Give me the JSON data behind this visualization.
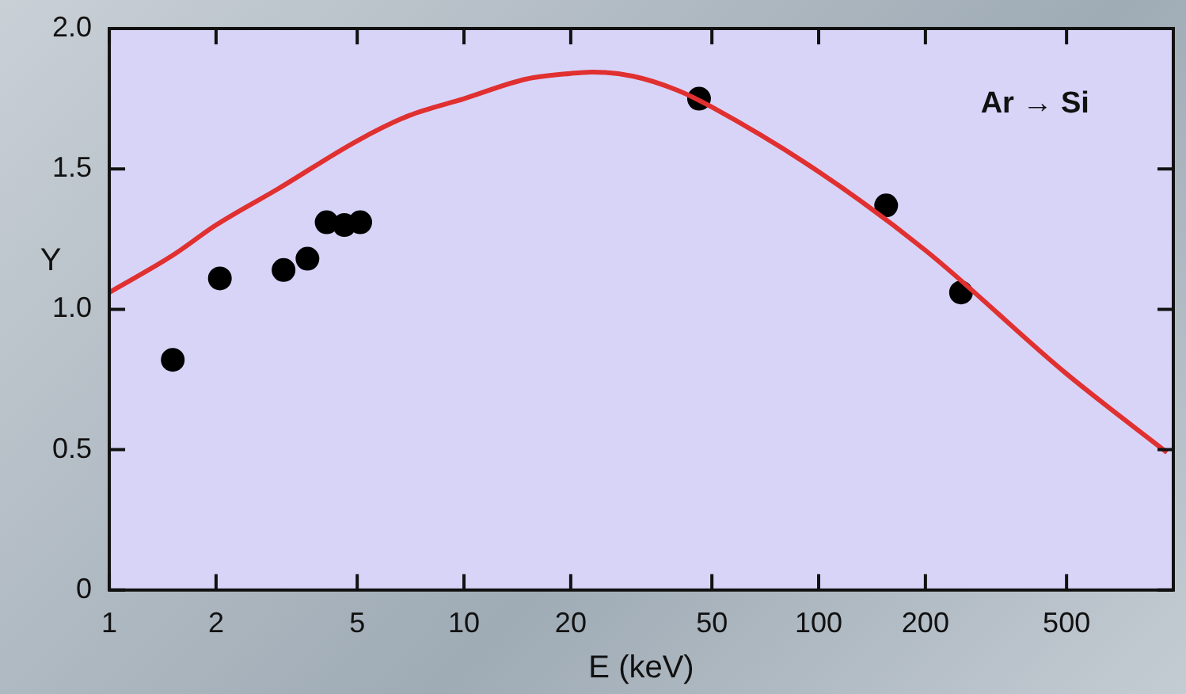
{
  "chart_data": {
    "type": "scatter",
    "xlabel": "E (keV)",
    "ylabel": "Y",
    "log": "x",
    "marker": "circle",
    "xlim": [
      1,
      1000
    ],
    "xticks": [
      1,
      2,
      5,
      10,
      20,
      50,
      100,
      200,
      500
    ],
    "ylim": [
      0,
      2
    ],
    "yticks": [
      0,
      0.5,
      {
        "value": 1,
        "label": "1.0"
      },
      1.5,
      {
        "value": 2,
        "label": "2.0"
      }
    ],
    "annotations": [
      "Ar → Si"
    ],
    "series": [
      {
        "type": "line",
        "color": "#e03030",
        "marker": "none",
        "x": [
          1,
          1.5,
          2,
          3,
          5,
          7,
          10,
          15,
          20,
          23,
          30,
          40,
          50,
          100,
          200,
          500,
          960
        ],
        "values": [
          1.06,
          1.19,
          1.3,
          1.43,
          1.6,
          1.69,
          1.75,
          1.82,
          1.84,
          1.845,
          1.83,
          1.78,
          1.72,
          1.49,
          1.21,
          0.77,
          0.49
        ]
      },
      {
        "type": "scatter",
        "color": "#000000",
        "x": [
          1.51,
          2.05,
          3.1,
          3.62,
          4.1,
          4.6,
          5.1,
          46,
          155,
          252
        ],
        "values": [
          0.82,
          1.11,
          1.14,
          1.18,
          1.31,
          1.3,
          1.31,
          1.75,
          1.37,
          1.06
        ]
      }
    ]
  }
}
